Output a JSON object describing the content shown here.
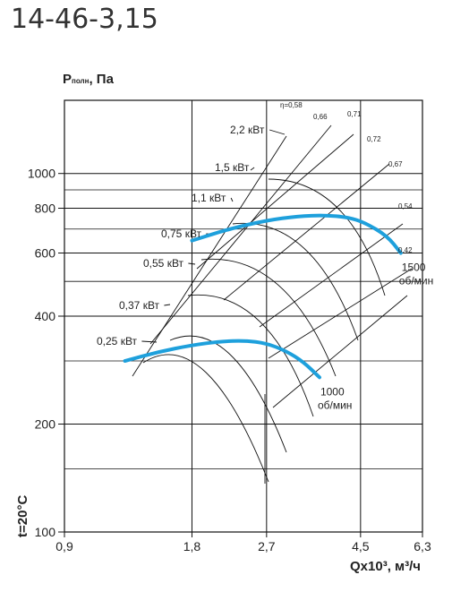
{
  "page": {
    "title": "14-46-3,15"
  },
  "chart_data": {
    "type": "line",
    "xscale": "log",
    "yscale": "log",
    "xlim": [
      0.9,
      6.3
    ],
    "ylim": [
      100,
      1600
    ],
    "xticks": [
      0.9,
      1.8,
      2.7,
      4.5,
      6.3
    ],
    "xtick_labels": [
      "0,9",
      "1,8",
      "2,7",
      "4,5",
      "6,3"
    ],
    "yticks": [
      100,
      200,
      400,
      600,
      800,
      1000
    ],
    "ytick_labels": [
      "100",
      "200",
      "400",
      "600",
      "800",
      "1000"
    ],
    "ylabel": "Pполн, Па",
    "ylabel_main": "P",
    "ylabel_sub": "полн",
    "ylabel_unit": ", Па",
    "xlabel": "Qx10³, м³/ч",
    "temperature_label": "t=20°C",
    "grid": true,
    "series": [
      {
        "name": "1500 об/мин",
        "label_line1": "1500",
        "label_line2": "об/мин",
        "color": "#1ea0dc",
        "x": [
          1.8,
          2.2,
          2.7,
          3.2,
          3.7,
          4.2,
          4.6,
          5.2,
          5.6
        ],
        "y": [
          650,
          700,
          740,
          760,
          765,
          755,
          730,
          670,
          600
        ]
      },
      {
        "name": "1000 об/мин",
        "label_line1": "1000",
        "label_line2": "об/мин",
        "color": "#1ea0dc",
        "x": [
          1.25,
          1.5,
          1.8,
          2.1,
          2.4,
          2.7,
          3.0,
          3.3,
          3.6
        ],
        "y": [
          300,
          318,
          332,
          340,
          342,
          336,
          320,
          298,
          270
        ]
      }
    ],
    "power_labels": [
      "2,2 кВт",
      "1,5 кВт",
      "1,1 кВт",
      "0,75 кВт",
      "0,55 кВт",
      "0,37 кВт",
      "0,25 кВт"
    ],
    "efficiency_labels": [
      "η=0,58",
      "0,66",
      "0,71",
      "0,72",
      "0,67",
      "0,54",
      "0,42"
    ]
  }
}
